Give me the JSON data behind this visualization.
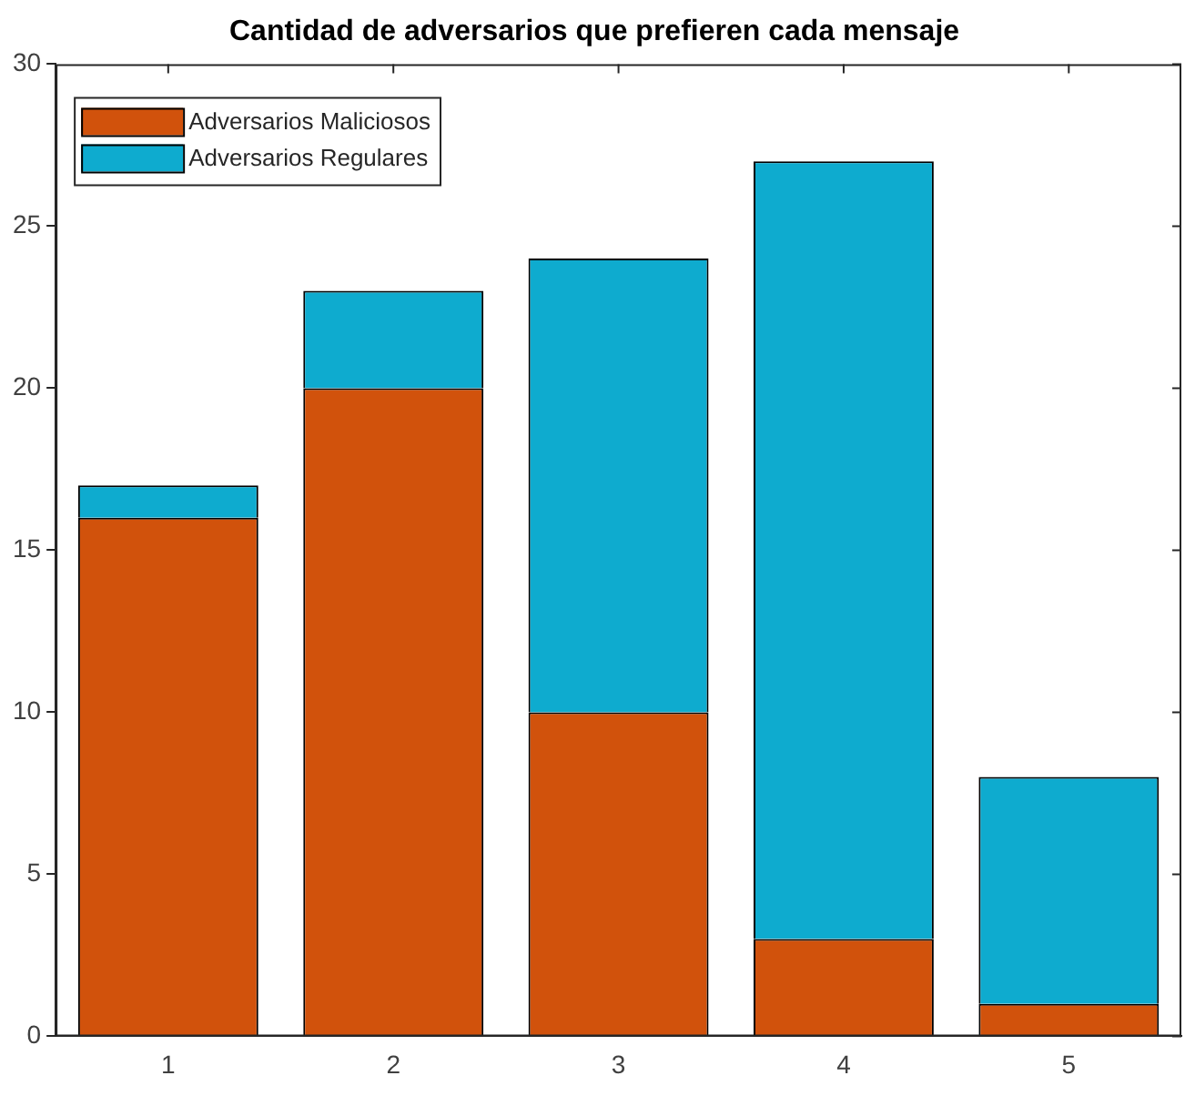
{
  "chart_data": {
    "type": "bar",
    "title": "Cantidad de adversarios que prefieren cada mensaje",
    "categories": [
      "1",
      "2",
      "3",
      "4",
      "5"
    ],
    "stacked": true,
    "series": [
      {
        "name": "Adversarios Maliciosos",
        "color": "#d1520c",
        "values": [
          16,
          20,
          10,
          3,
          1
        ]
      },
      {
        "name": "Adversarios Regulares",
        "color": "#0eabcf",
        "values": [
          1,
          3,
          14,
          24,
          7
        ]
      }
    ],
    "ylim": [
      0,
      30
    ],
    "yticks": [
      0,
      5,
      10,
      15,
      20,
      25,
      30
    ],
    "grid": false,
    "legend": "top left"
  }
}
